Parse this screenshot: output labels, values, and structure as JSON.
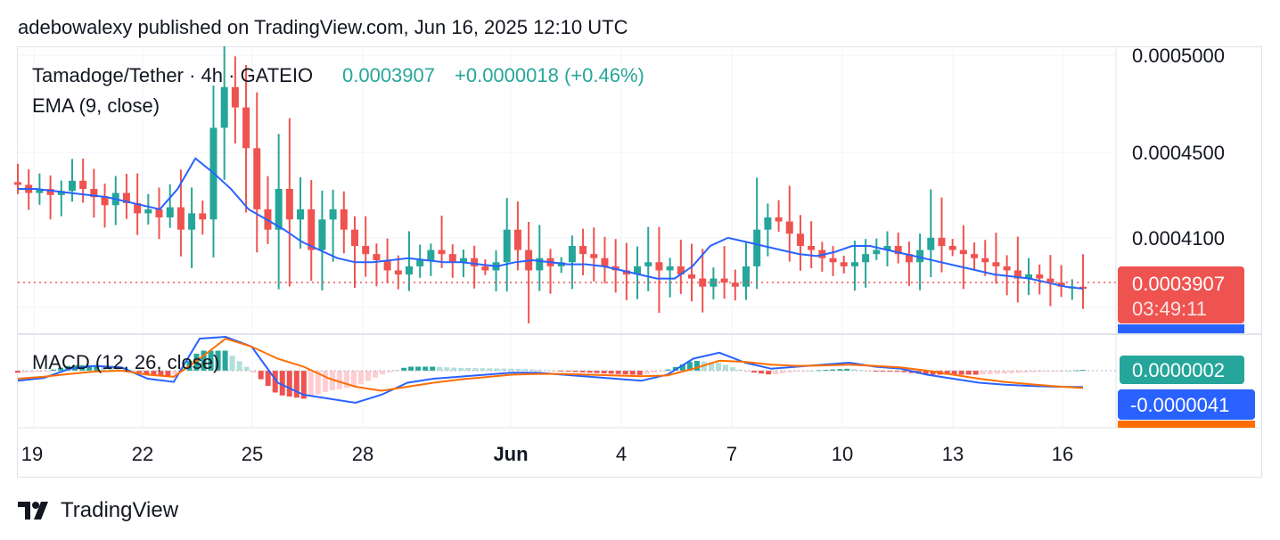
{
  "header": {
    "text": "adebowalexy published on TradingView.com, Jun 16, 2025 12:10 UTC"
  },
  "legend": {
    "symbol": "Tamadoge/Tether · 4h · GATEIO",
    "last": "0.0003907",
    "change": "+0.0000018 (+0.46%)",
    "ema": "EMA (9, close)",
    "macd": "MACD (12, 26, close)"
  },
  "colors": {
    "up": "#26a69a",
    "down": "#ef5350",
    "ema": "#2962ff",
    "signal": "#ff6d00",
    "hist_up": "#26a69a",
    "hist_up_light": "#b2dfdb",
    "hist_down": "#ef5350",
    "hist_down_light": "#ffcdd2",
    "grid": "#f0f3fa"
  },
  "price_axis": {
    "ticks": [
      "0.0005000",
      "0.0004500",
      "0.0004100"
    ],
    "current": {
      "value": "0.0003907",
      "countdown": "03:49:11"
    }
  },
  "macd_axis": {
    "hist": "0.0000002",
    "macd": "-0.0000041"
  },
  "time_axis": {
    "labels": [
      {
        "text": "19",
        "bold": false
      },
      {
        "text": "22",
        "bold": false
      },
      {
        "text": "25",
        "bold": false
      },
      {
        "text": "28",
        "bold": false
      },
      {
        "text": "Jun",
        "bold": true
      },
      {
        "text": "4",
        "bold": false
      },
      {
        "text": "7",
        "bold": false
      },
      {
        "text": "10",
        "bold": false
      },
      {
        "text": "13",
        "bold": false
      },
      {
        "text": "16",
        "bold": false
      }
    ]
  },
  "footer": {
    "brand": "TradingView"
  },
  "chart_data": {
    "type": "candlestick",
    "symbol": "TAMA/USDT",
    "interval": "4h",
    "x_start": "May 19, 2025",
    "x_end": "Jun 16, 2025",
    "price_ylim": [
      0.00037,
      0.00051
    ],
    "current_price": 0.0003907,
    "price_series": [
      0.000442,
      0.000438,
      0.00044,
      0.000437,
      0.000439,
      0.000444,
      0.00044,
      0.000436,
      0.000432,
      0.000438,
      0.000433,
      0.000428,
      0.00043,
      0.000426,
      0.000431,
      0.00042,
      0.000428,
      0.000425,
      0.00047,
      0.00049,
      0.00048,
      0.00046,
      0.00043,
      0.00042,
      0.00044,
      0.000425,
      0.00043,
      0.00041,
      0.000425,
      0.00043,
      0.00042,
      0.000412,
      0.000408,
      0.000405,
      0.0004,
      0.000398,
      0.000402,
      0.000405,
      0.00041,
      0.000408,
      0.000404,
      0.000406,
      0.000402,
      0.0004,
      0.000404,
      0.00042,
      0.00041,
      0.0004,
      0.000406,
      0.000402,
      0.000404,
      0.000412,
      0.000408,
      0.000406,
      0.000402,
      0.0004,
      0.000398,
      0.000402,
      0.000404,
      0.0004,
      0.000402,
      0.000398,
      0.000396,
      0.000392,
      0.000396,
      0.000394,
      0.000392,
      0.000402,
      0.00042,
      0.000426,
      0.000424,
      0.000418,
      0.000412,
      0.00041,
      0.000406,
      0.000404,
      0.000402,
      0.000404,
      0.000408,
      0.00041,
      0.000412,
      0.000408,
      0.000404,
      0.00041,
      0.000416,
      0.000412,
      0.00041,
      0.000408,
      0.000406,
      0.000404,
      0.000402,
      0.0004,
      0.000396,
      0.000398,
      0.000396,
      0.000394,
      0.000392,
      0.000392,
      0.000391
    ],
    "ema_series": [
      0.00044,
      0.00044,
      0.000439,
      0.000438,
      0.000437,
      0.000436,
      0.000434,
      0.000432,
      0.00043,
      0.00044,
      0.000455,
      0.000448,
      0.00044,
      0.00043,
      0.000425,
      0.00042,
      0.000414,
      0.00041,
      0.000406,
      0.000404,
      0.000404,
      0.000405,
      0.000406,
      0.000405,
      0.000404,
      0.000404,
      0.000403,
      0.000402,
      0.000404,
      0.000405,
      0.000404,
      0.000403,
      0.000403,
      0.000402,
      0.0004,
      0.000398,
      0.000396,
      0.000396,
      0.000402,
      0.000412,
      0.000416,
      0.000414,
      0.000412,
      0.00041,
      0.000408,
      0.000407,
      0.000409,
      0.000412,
      0.000412,
      0.00041,
      0.000408,
      0.000406,
      0.000404,
      0.000402,
      0.0004,
      0.000398,
      0.000397,
      0.000396,
      0.000394,
      0.000392,
      0.000391
    ],
    "macd_series": [
      -2.5e-06,
      -1.8e-06,
      5e-07,
      1.2e-06,
      8e-07,
      -2e-06,
      -2.8e-06,
      8e-06,
      1.3e-05,
      6e-06,
      -3e-06,
      -6e-06,
      -7e-06,
      -8e-06,
      -6e-06,
      -3e-06,
      -2e-06,
      -1.5e-06,
      -1e-06,
      -5e-07,
      -5e-07,
      -1e-06,
      -1.5e-06,
      -2e-06,
      -2.5e-06,
      -1e-06,
      3e-06,
      4.5e-06,
      2e-06,
      5e-07,
      1e-06,
      1.5e-06,
      2e-06,
      1e-06,
      5e-07,
      -1e-06,
      -2e-06,
      -3e-06,
      -3.5e-06,
      -3.8e-06,
      -4e-06,
      -4.1e-06
    ],
    "signal_series": [
      -2e-06,
      -1.5e-06,
      -8e-07,
      -2e-07,
      0.0,
      -1e-06,
      -1.5e-06,
      3e-06,
      8e-06,
      6e-06,
      3e-06,
      1e-06,
      -2e-06,
      -4e-06,
      -5e-06,
      -4e-06,
      -3e-06,
      -2.2e-06,
      -1.6e-06,
      -1e-06,
      -8e-07,
      -8e-07,
      -1e-06,
      -1.2e-06,
      -1.4e-06,
      -1.2e-06,
      5e-07,
      2.5e-06,
      2.2e-06,
      1.5e-06,
      1.2e-06,
      1.3e-06,
      1.5e-06,
      1.2e-06,
      8e-07,
      0.0,
      -1e-06,
      -2e-06,
      -2.8e-06,
      -3.4e-06,
      -3.9e-06,
      -4.3e-06
    ],
    "macd_hist_last": 2e-07,
    "macd_last": -4.1e-06
  }
}
